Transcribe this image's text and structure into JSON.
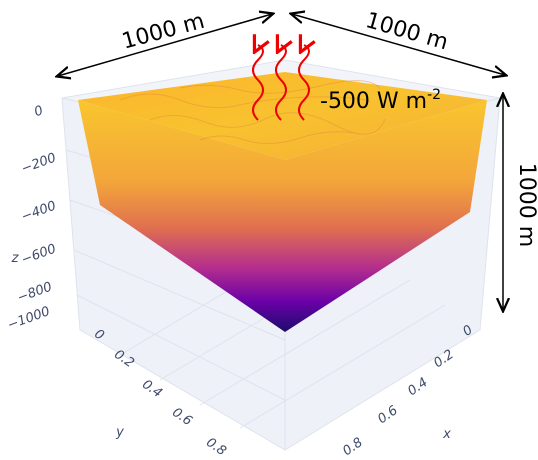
{
  "annotations": {
    "width": "1000 m",
    "depth": "1000 m",
    "height": "1000 m",
    "flux": "-500 W m",
    "flux_exponent": "-2"
  },
  "axes": {
    "z": {
      "label": "z",
      "ticks": [
        "0",
        "−200",
        "−400",
        "−600",
        "−800",
        "−1000"
      ]
    },
    "y": {
      "label": "y",
      "ticks": [
        "0",
        "0.2",
        "0.4",
        "0.6",
        "0.8"
      ]
    },
    "x": {
      "label": "x",
      "ticks": [
        "0",
        "0.2",
        "0.4",
        "0.6",
        "0.8"
      ]
    }
  }
}
